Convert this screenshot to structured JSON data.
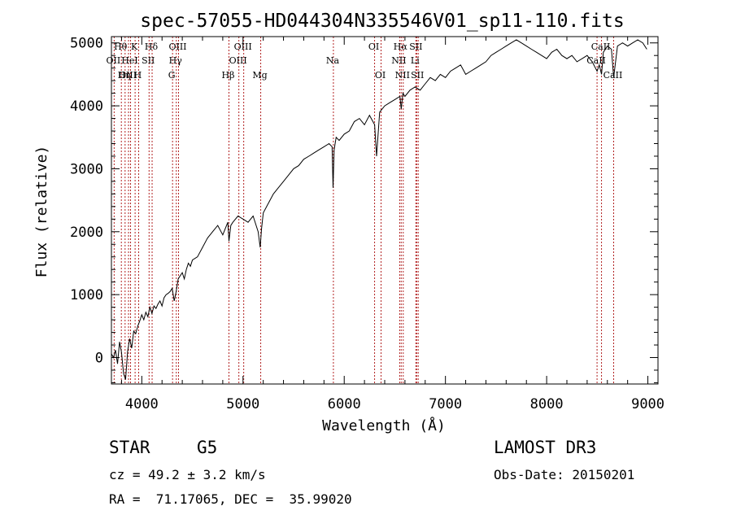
{
  "chart_data": {
    "type": "line",
    "title": "spec-57055-HD044304N335546V01_sp11-110.fits",
    "xlabel": "Wavelength (Å)",
    "ylabel": "Flux (relative)",
    "xlim": [
      3700,
      9100
    ],
    "ylim": [
      -420,
      5100
    ],
    "xticks": [
      4000,
      5000,
      6000,
      7000,
      8000,
      9000
    ],
    "yticks": [
      0,
      1000,
      2000,
      3000,
      4000,
      5000
    ],
    "series": [
      {
        "name": "spectrum",
        "x": [
          3700,
          3720,
          3740,
          3760,
          3780,
          3800,
          3820,
          3840,
          3860,
          3880,
          3900,
          3920,
          3940,
          3960,
          3980,
          4000,
          4020,
          4040,
          4060,
          4080,
          4100,
          4120,
          4140,
          4160,
          4180,
          4200,
          4220,
          4240,
          4260,
          4280,
          4300,
          4320,
          4340,
          4360,
          4380,
          4400,
          4420,
          4440,
          4460,
          4480,
          4500,
          4550,
          4600,
          4650,
          4700,
          4750,
          4800,
          4850,
          4861,
          4880,
          4900,
          4950,
          5000,
          5050,
          5100,
          5150,
          5170,
          5183,
          5200,
          5250,
          5300,
          5350,
          5400,
          5450,
          5500,
          5550,
          5600,
          5650,
          5700,
          5750,
          5800,
          5850,
          5880,
          5890,
          5900,
          5920,
          5950,
          6000,
          6050,
          6100,
          6150,
          6200,
          6250,
          6300,
          6320,
          6350,
          6400,
          6450,
          6500,
          6550,
          6563,
          6580,
          6600,
          6650,
          6700,
          6750,
          6800,
          6850,
          6900,
          6950,
          7000,
          7050,
          7100,
          7150,
          7200,
          7250,
          7300,
          7350,
          7400,
          7450,
          7500,
          7550,
          7600,
          7650,
          7700,
          7750,
          7800,
          7850,
          7900,
          7950,
          8000,
          8050,
          8100,
          8150,
          8200,
          8250,
          8300,
          8350,
          8400,
          8450,
          8498,
          8520,
          8542,
          8560,
          8600,
          8640,
          8662,
          8700,
          8750,
          8800,
          8850,
          8900,
          8950,
          8990
        ],
        "y": [
          60,
          0,
          120,
          -100,
          250,
          80,
          -250,
          -350,
          100,
          300,
          150,
          420,
          380,
          500,
          580,
          680,
          600,
          720,
          650,
          800,
          700,
          820,
          780,
          850,
          900,
          820,
          950,
          1000,
          1020,
          1050,
          1100,
          900,
          1050,
          1250,
          1300,
          1350,
          1250,
          1400,
          1500,
          1450,
          1550,
          1600,
          1750,
          1900,
          2000,
          2100,
          1950,
          2150,
          1850,
          2100,
          2150,
          2250,
          2200,
          2150,
          2250,
          2000,
          1750,
          2050,
          2300,
          2450,
          2600,
          2700,
          2800,
          2900,
          3000,
          3050,
          3150,
          3200,
          3250,
          3300,
          3350,
          3400,
          3350,
          2700,
          3300,
          3500,
          3450,
          3550,
          3600,
          3750,
          3800,
          3700,
          3850,
          3700,
          3200,
          3900,
          4000,
          4050,
          4100,
          4150,
          3950,
          4200,
          4150,
          4250,
          4300,
          4250,
          4350,
          4450,
          4400,
          4500,
          4450,
          4550,
          4600,
          4650,
          4500,
          4550,
          4600,
          4650,
          4700,
          4800,
          4850,
          4900,
          4950,
          5000,
          5050,
          5000,
          4950,
          4900,
          4850,
          4800,
          4750,
          4850,
          4900,
          4800,
          4750,
          4800,
          4700,
          4750,
          4800,
          4700,
          4550,
          4650,
          4500,
          4850,
          4950,
          4900,
          4450,
          4950,
          5000,
          4950,
          5000,
          5050,
          5000,
          4900
        ]
      }
    ],
    "spectral_lines": [
      {
        "label": "Hθ",
        "wavelength": 3798,
        "row": 1
      },
      {
        "label": "OII",
        "wavelength": 3727,
        "row": 2
      },
      {
        "label": "OIII",
        "wavelength": 3869,
        "row": 3
      },
      {
        "label": "K",
        "wavelength": 3934,
        "row": 1
      },
      {
        "label": "HeI",
        "wavelength": 3889,
        "row": 2
      },
      {
        "label": "Hη",
        "wavelength": 3835,
        "row": 3
      },
      {
        "label": "SII",
        "wavelength": 4072,
        "row": 2
      },
      {
        "label": "H",
        "wavelength": 3969,
        "row": 3
      },
      {
        "label": "Hδ",
        "wavelength": 4102,
        "row": 1
      },
      {
        "label": "OIII",
        "wavelength": 4363,
        "row": 1
      },
      {
        "label": "Hγ",
        "wavelength": 4341,
        "row": 2
      },
      {
        "label": "G",
        "wavelength": 4304,
        "row": 3
      },
      {
        "label": "Hβ",
        "wavelength": 4861,
        "row": 3
      },
      {
        "label": "OIII",
        "wavelength": 5007,
        "row": 1
      },
      {
        "label": "OIII",
        "wavelength": 4959,
        "row": 2
      },
      {
        "label": "Mg",
        "wavelength": 5175,
        "row": 3
      },
      {
        "label": "Na",
        "wavelength": 5893,
        "row": 2
      },
      {
        "label": "OI",
        "wavelength": 6300,
        "row": 1
      },
      {
        "label": "OI",
        "wavelength": 6364,
        "row": 3
      },
      {
        "label": "Hα",
        "wavelength": 6563,
        "row": 1
      },
      {
        "label": "SII",
        "wavelength": 6716,
        "row": 1
      },
      {
        "label": "NII",
        "wavelength": 6548,
        "row": 2
      },
      {
        "label": "Li",
        "wavelength": 6708,
        "row": 2
      },
      {
        "label": "NII",
        "wavelength": 6583,
        "row": 3
      },
      {
        "label": "SII",
        "wavelength": 6731,
        "row": 3
      },
      {
        "label": "CaII",
        "wavelength": 8542,
        "row": 1
      },
      {
        "label": "CaII",
        "wavelength": 8498,
        "row": 2
      },
      {
        "label": "CaII",
        "wavelength": 8662,
        "row": 3
      }
    ]
  },
  "info": {
    "class": "STAR",
    "subclass": "G5",
    "survey": "LAMOST DR3",
    "cz": "cz = 49.2 ± 3.2 km/s",
    "obs_date": "Obs-Date: 20150201",
    "coords": "RA =  71.17065, DEC =  35.99020"
  }
}
